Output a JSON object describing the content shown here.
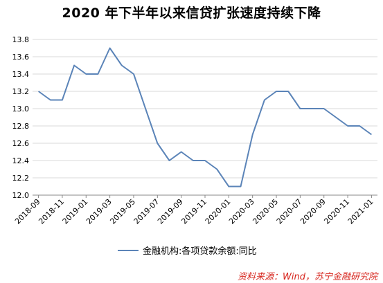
{
  "chart_data": {
    "type": "line",
    "title": "2020 年下半年以来信贷扩张速度持续下降",
    "xlabel": "",
    "ylabel": "",
    "ylim": [
      12.0,
      13.8
    ],
    "yticks": [
      "12.0",
      "12.2",
      "12.4",
      "12.6",
      "12.8",
      "13.0",
      "13.2",
      "13.4",
      "13.6",
      "13.8"
    ],
    "x": [
      "2018-09",
      "2018-10",
      "2018-11",
      "2018-12",
      "2019-01",
      "2019-02",
      "2019-03",
      "2019-04",
      "2019-05",
      "2019-06",
      "2019-07",
      "2019-08",
      "2019-09",
      "2019-10",
      "2019-11",
      "2019-12",
      "2020-01",
      "2020-02",
      "2020-03",
      "2020-04",
      "2020-05",
      "2020-06",
      "2020-07",
      "2020-08",
      "2020-09",
      "2020-10",
      "2020-11",
      "2020-12",
      "2021-01"
    ],
    "xticks": [
      "2018-09",
      "2018-11",
      "2019-01",
      "2019-03",
      "2019-05",
      "2019-07",
      "2019-09",
      "2019-11",
      "2020-01",
      "2020-03",
      "2020-05",
      "2020-07",
      "2020-09",
      "2020-11",
      "2021-01"
    ],
    "series": [
      {
        "name": "金融机构:各项贷款余额:同比",
        "color": "#5b84b8",
        "values": [
          13.2,
          13.1,
          13.1,
          13.5,
          13.4,
          13.4,
          13.7,
          13.5,
          13.4,
          13.0,
          12.6,
          12.4,
          12.5,
          12.4,
          12.4,
          12.3,
          12.1,
          12.1,
          12.7,
          13.1,
          13.2,
          13.2,
          13.0,
          13.0,
          13.0,
          12.9,
          12.8,
          12.8,
          12.7
        ]
      }
    ],
    "grid": "horizontal",
    "legend": "bottom",
    "source": "资料来源：Wind，苏宁金融研究院"
  }
}
